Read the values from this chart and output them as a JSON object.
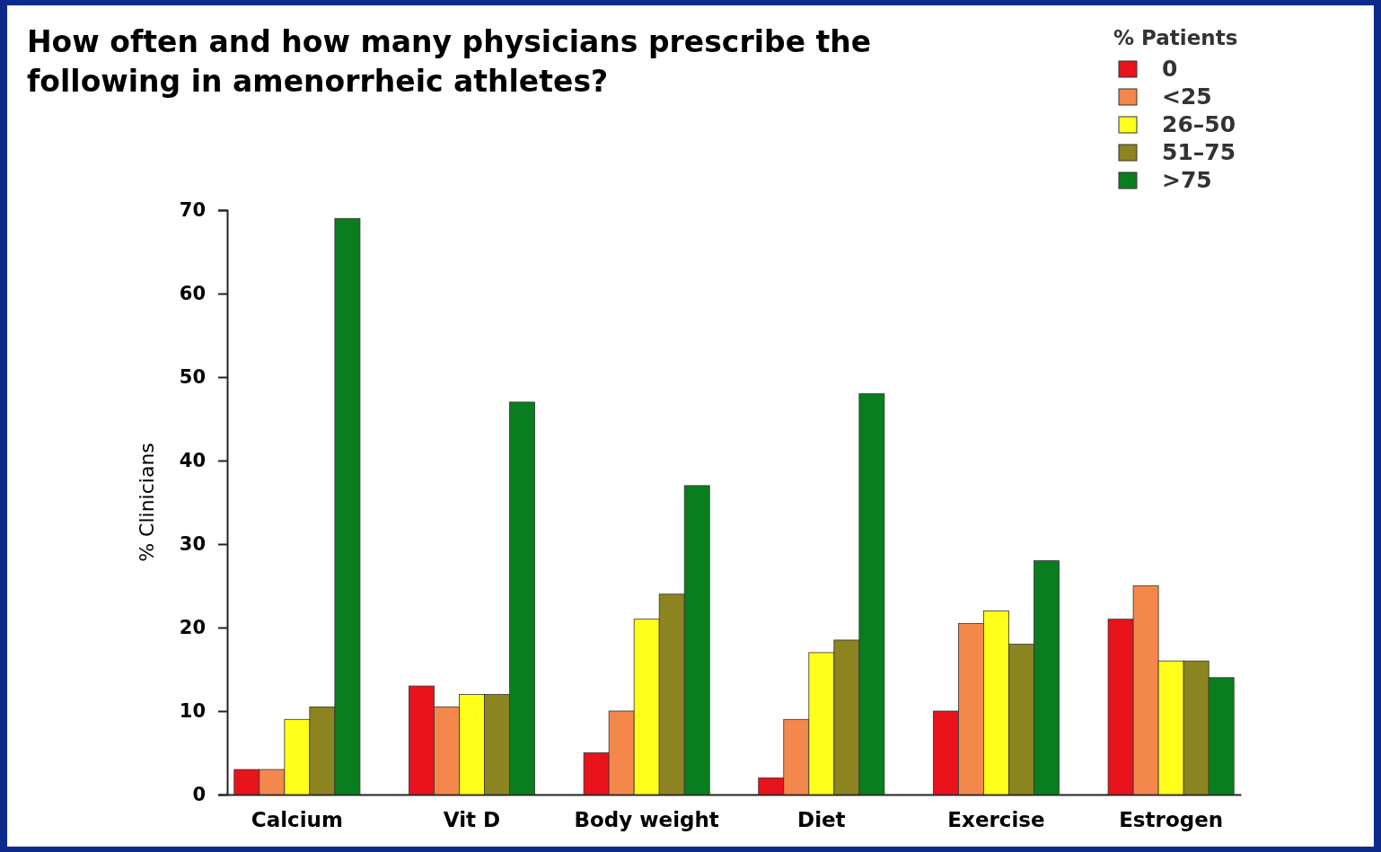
{
  "chart_data": {
    "type": "bar",
    "title": "How often and how many physicians prescribe the following in amenorrheic athletes?",
    "ylabel": "% Clinicians",
    "legend_title": "% Patients",
    "legend": "top right",
    "categories": [
      "Calcium",
      "Vit D",
      "Body weight",
      "Diet",
      "Exercise",
      "Estrogen"
    ],
    "series": [
      {
        "name": "0",
        "color": "#e8131b",
        "values": [
          3,
          13,
          5,
          2,
          10,
          21
        ]
      },
      {
        "name": "<25",
        "color": "#f4874b",
        "values": [
          3,
          10.5,
          10,
          9,
          20.5,
          25
        ]
      },
      {
        "name": "26–50",
        "color": "#ffff1a",
        "values": [
          9,
          12,
          21,
          17,
          22,
          16
        ]
      },
      {
        "name": "51–75",
        "color": "#8b8420",
        "values": [
          10.5,
          12,
          24,
          18.5,
          18,
          16
        ]
      },
      {
        "name": ">75",
        "color": "#0a7d1e",
        "values": [
          69,
          47,
          37,
          48,
          28,
          14
        ]
      }
    ],
    "ylim": [
      0,
      70
    ],
    "yticks": [
      0,
      10,
      20,
      30,
      40,
      50,
      60,
      70
    ]
  }
}
